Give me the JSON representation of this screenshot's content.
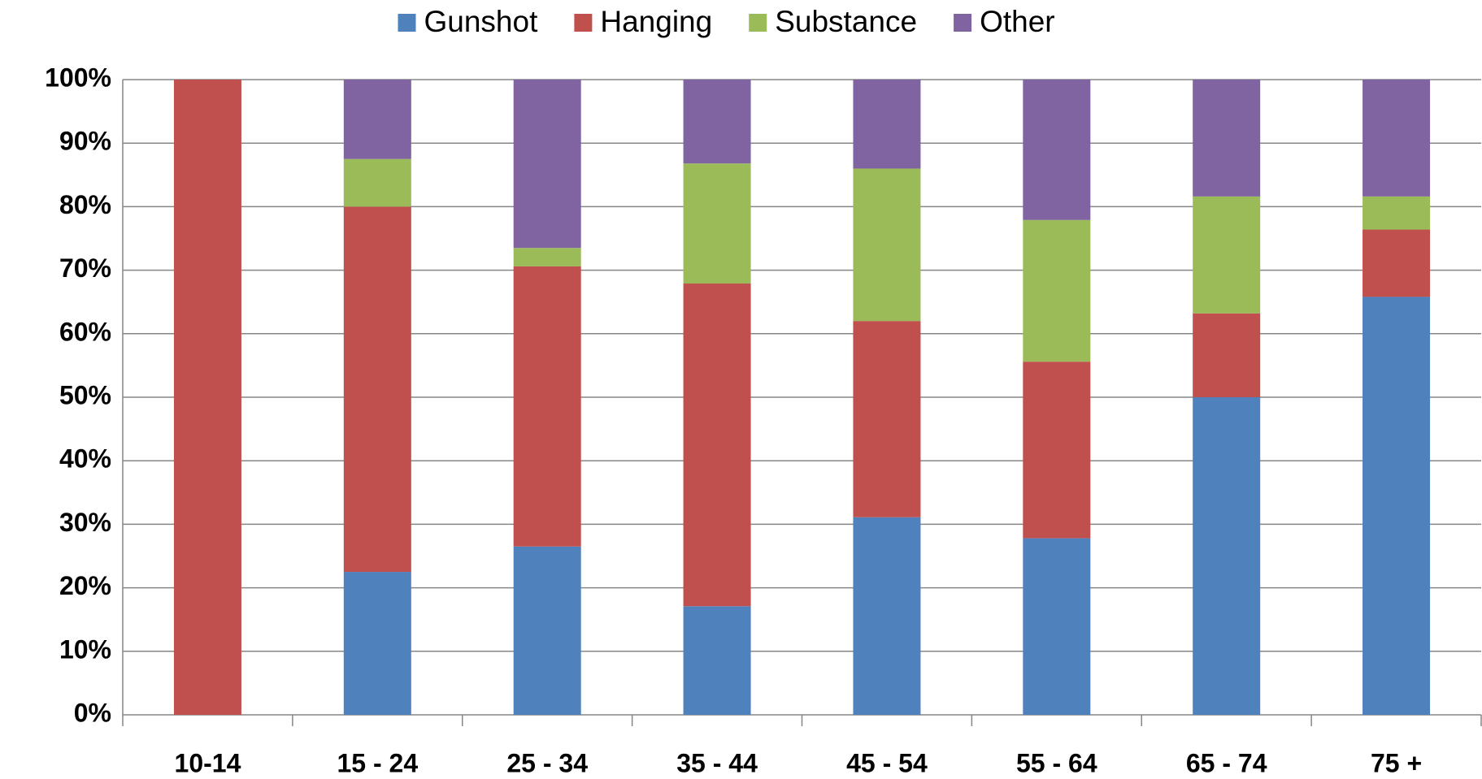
{
  "chart_data": {
    "type": "stacked_bar",
    "categories": [
      "10-14",
      "15 - 24",
      "25 - 34",
      "35 - 44",
      "45 - 54",
      "55 - 64",
      "65 - 74",
      "75 +"
    ],
    "series": [
      {
        "name": "Gunshot",
        "color": "#4f81bd",
        "values": [
          0,
          22.5,
          26.5,
          17.1,
          31.1,
          27.8,
          50,
          65.8
        ]
      },
      {
        "name": "Hanging",
        "color": "#c0504d",
        "values": [
          100,
          57.5,
          44.1,
          50.8,
          30.9,
          27.8,
          13.2,
          10.6
        ]
      },
      {
        "name": "Substance",
        "color": "#9bbb59",
        "values": [
          0,
          7.5,
          2.9,
          18.9,
          24,
          22.3,
          18.4,
          5.2
        ]
      },
      {
        "name": "Other",
        "color": "#8064a2",
        "values": [
          0,
          12.5,
          26.5,
          13.2,
          14,
          22.1,
          18.4,
          18.4
        ]
      }
    ],
    "ylim": [
      0,
      100
    ],
    "yticks": [
      {
        "value": 0,
        "label": "0%"
      },
      {
        "value": 10,
        "label": "10%"
      },
      {
        "value": 20,
        "label": "20%"
      },
      {
        "value": 30,
        "label": "30%"
      },
      {
        "value": 40,
        "label": "40%"
      },
      {
        "value": 50,
        "label": "50%"
      },
      {
        "value": 60,
        "label": "60%"
      },
      {
        "value": 70,
        "label": "70%"
      },
      {
        "value": 80,
        "label": "80%"
      },
      {
        "value": 90,
        "label": "90%"
      },
      {
        "value": 100,
        "label": "100%"
      }
    ],
    "grid": true,
    "legend": "top"
  }
}
